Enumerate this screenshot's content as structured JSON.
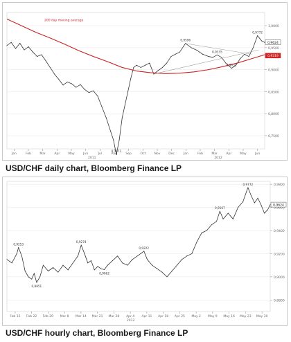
{
  "captions": {
    "daily": "USD/CHF daily chart, Bloomberg Finance LP",
    "hourly": "USD/CHF hourly chart, Bloomberg Finance LP"
  },
  "colors": {
    "price": "#333333",
    "moving_average": "#cc2222",
    "trendline": "#999999",
    "axis_text": "#666666",
    "grid": "#e6e6e6"
  },
  "chart_data": [
    {
      "type": "line",
      "title": "",
      "annotation": "200 day moving average",
      "x_ticks": [
        "Jan",
        "Feb",
        "Mar",
        "Apr",
        "May",
        "Jun",
        "Jul",
        "Aug",
        "Sep",
        "Oct",
        "Nov",
        "Dec",
        "Jan",
        "Feb",
        "Mar",
        "Apr",
        "May",
        "Jun"
      ],
      "year_labels": [
        "2011",
        "2012"
      ],
      "y_ticks": [
        "1,0000",
        "0,9500",
        "0,9000",
        "0,8500",
        "0,8000",
        "0,7500"
      ],
      "ylim": [
        0.72,
        1.03
      ],
      "price_labels": [
        {
          "text": "0,7071",
          "x": 7.6,
          "y": 0.7071
        },
        {
          "text": "0,9596",
          "x": 12.4,
          "y": 0.9596
        },
        {
          "text": "0,9335",
          "x": 14.6,
          "y": 0.9335
        },
        {
          "text": "0,9031",
          "x": 15.6,
          "y": 0.9031
        },
        {
          "text": "0,9772",
          "x": 17.4,
          "y": 0.9772
        }
      ],
      "last_price_tags": [
        "0,9624",
        "0,9319"
      ],
      "series": [
        {
          "name": "USD/CHF",
          "x": [
            0,
            0.3,
            0.6,
            0.9,
            1.2,
            1.5,
            1.8,
            2.1,
            2.4,
            2.7,
            3.0,
            3.3,
            3.6,
            3.9,
            4.2,
            4.5,
            4.8,
            5.1,
            5.4,
            5.7,
            6.0,
            6.3,
            6.6,
            6.9,
            7.2,
            7.4,
            7.6,
            7.8,
            8.0,
            8.2,
            8.4,
            8.6,
            8.8,
            9.0,
            9.3,
            9.6,
            9.9,
            10.2,
            10.5,
            10.8,
            11.1,
            11.4,
            11.7,
            12.0,
            12.4,
            12.8,
            13.2,
            13.6,
            14.0,
            14.3,
            14.6,
            14.9,
            15.2,
            15.6,
            15.9,
            16.2,
            16.5,
            16.8,
            17.1,
            17.4,
            17.7,
            17.9
          ],
          "values": [
            0.955,
            0.962,
            0.948,
            0.96,
            0.945,
            0.952,
            0.94,
            0.93,
            0.934,
            0.92,
            0.905,
            0.89,
            0.878,
            0.865,
            0.872,
            0.868,
            0.86,
            0.866,
            0.855,
            0.848,
            0.852,
            0.84,
            0.815,
            0.79,
            0.76,
            0.74,
            0.7071,
            0.74,
            0.79,
            0.82,
            0.85,
            0.88,
            0.905,
            0.91,
            0.905,
            0.91,
            0.915,
            0.89,
            0.898,
            0.905,
            0.915,
            0.93,
            0.935,
            0.94,
            0.9596,
            0.95,
            0.944,
            0.935,
            0.93,
            0.928,
            0.9335,
            0.928,
            0.915,
            0.9031,
            0.91,
            0.925,
            0.935,
            0.93,
            0.95,
            0.9772,
            0.965,
            0.962
          ]
        },
        {
          "name": "200 day moving average",
          "x": [
            0,
            1,
            2,
            3,
            4,
            5,
            6,
            7,
            8,
            9,
            10,
            11,
            12,
            13,
            14,
            15,
            16,
            17,
            17.9
          ],
          "values": [
            1.015,
            1.0,
            0.985,
            0.972,
            0.958,
            0.943,
            0.93,
            0.918,
            0.905,
            0.897,
            0.893,
            0.891,
            0.892,
            0.895,
            0.9,
            0.907,
            0.915,
            0.925,
            0.934
          ]
        }
      ]
    },
    {
      "type": "line",
      "title": "",
      "x_ticks": [
        "Feb 15",
        "Feb 22",
        "Feb 29",
        "Mar 8",
        "Mar 14",
        "Mar 21",
        "Mar 28",
        "Apr 4",
        "Apr 11",
        "Apr 18",
        "Apr 25",
        "May 2",
        "May 9",
        "May 16",
        "May 23",
        "May 30"
      ],
      "year_labels": [
        "2012"
      ],
      "y_ticks": [
        "0,9800",
        "0,9600",
        "0,9400",
        "0,9200",
        "0,9000",
        "0,8800"
      ],
      "ylim": [
        0.87,
        0.9825
      ],
      "price_labels": [
        {
          "text": "0,9253",
          "x": 0.7,
          "y": 0.9253
        },
        {
          "text": "0,8951",
          "x": 1.8,
          "y": 0.8951
        },
        {
          "text": "0,9274",
          "x": 4.5,
          "y": 0.9274
        },
        {
          "text": "0,9062",
          "x": 5.9,
          "y": 0.9062
        },
        {
          "text": "0,9222",
          "x": 8.3,
          "y": 0.9222
        },
        {
          "text": "0,9567",
          "x": 12.9,
          "y": 0.9567
        },
        {
          "text": "0,9772",
          "x": 14.6,
          "y": 0.9772
        }
      ],
      "last_price_tags": [
        "0,9624"
      ],
      "series": [
        {
          "name": "USD/CHF",
          "x": [
            0,
            0.3,
            0.6,
            0.7,
            0.9,
            1.1,
            1.3,
            1.5,
            1.65,
            1.8,
            2.0,
            2.2,
            2.5,
            2.8,
            3.1,
            3.4,
            3.7,
            4.0,
            4.3,
            4.5,
            4.7,
            4.9,
            5.1,
            5.3,
            5.5,
            5.7,
            5.9,
            6.1,
            6.4,
            6.7,
            7.0,
            7.3,
            7.6,
            7.9,
            8.1,
            8.3,
            8.5,
            8.8,
            9.1,
            9.4,
            9.7,
            10.0,
            10.3,
            10.6,
            10.9,
            11.2,
            11.5,
            11.8,
            12.1,
            12.4,
            12.7,
            12.9,
            13.1,
            13.4,
            13.7,
            14.0,
            14.3,
            14.6,
            14.8,
            15.0,
            15.2,
            15.4,
            15.6,
            15.8,
            15.95
          ],
          "values": [
            0.915,
            0.912,
            0.92,
            0.9253,
            0.918,
            0.905,
            0.9,
            0.898,
            0.903,
            0.8951,
            0.9,
            0.91,
            0.905,
            0.908,
            0.904,
            0.91,
            0.906,
            0.912,
            0.918,
            0.9274,
            0.92,
            0.912,
            0.914,
            0.906,
            0.909,
            0.907,
            0.9062,
            0.91,
            0.914,
            0.918,
            0.912,
            0.91,
            0.915,
            0.918,
            0.92,
            0.9222,
            0.915,
            0.91,
            0.907,
            0.904,
            0.9,
            0.905,
            0.91,
            0.915,
            0.918,
            0.92,
            0.93,
            0.938,
            0.94,
            0.945,
            0.948,
            0.9567,
            0.95,
            0.955,
            0.95,
            0.96,
            0.965,
            0.9772,
            0.97,
            0.964,
            0.968,
            0.962,
            0.955,
            0.958,
            0.9624
          ]
        }
      ]
    }
  ]
}
